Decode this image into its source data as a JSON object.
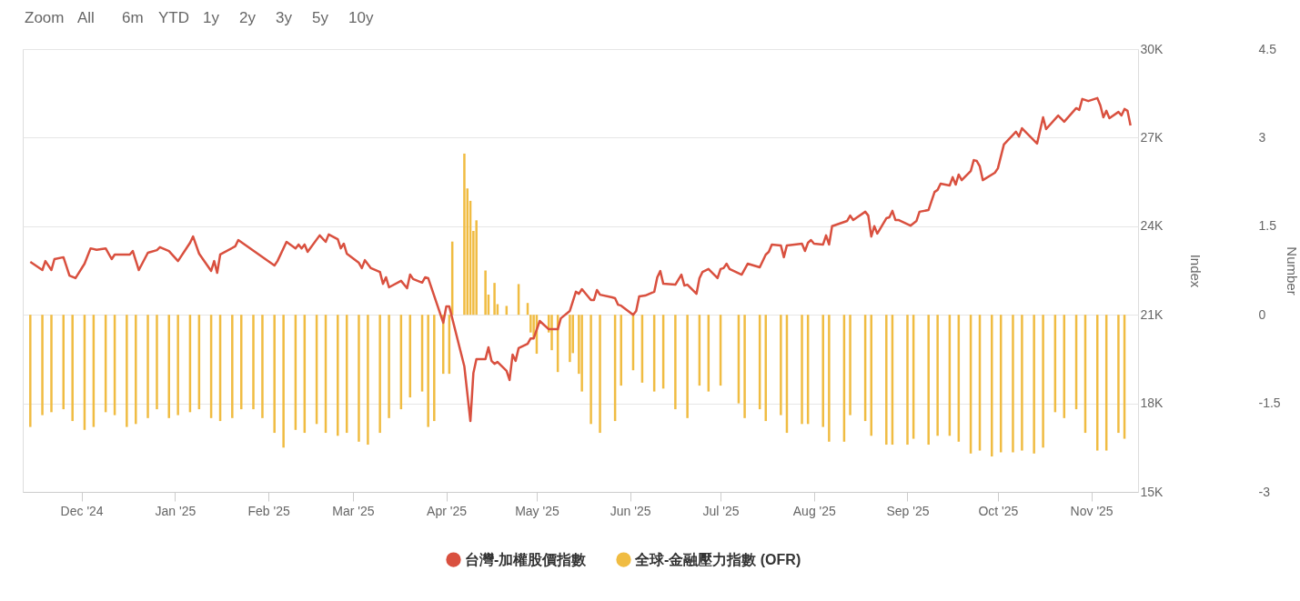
{
  "chart_data": {
    "type": "line",
    "annotations": [
      "Zoom",
      "All",
      "6m",
      "YTD",
      "1y",
      "2y",
      "3y",
      "5y",
      "10y"
    ],
    "ylabel": "Index",
    "y2label": "Number",
    "xlim": [
      "2024-11-13",
      "2025-11-15"
    ],
    "xticks": [
      {
        "value": "2024-12-01",
        "label": "Dec '24"
      },
      {
        "value": "2025-01-01",
        "label": "Jan '25"
      },
      {
        "value": "2025-02-01",
        "label": "Feb '25"
      },
      {
        "value": "2025-03-01",
        "label": "Mar '25"
      },
      {
        "value": "2025-04-01",
        "label": "Apr '25"
      },
      {
        "value": "2025-05-01",
        "label": "May '25"
      },
      {
        "value": "2025-06-01",
        "label": "Jun '25"
      },
      {
        "value": "2025-07-01",
        "label": "Jul '25"
      },
      {
        "value": "2025-08-01",
        "label": "Aug '25"
      },
      {
        "value": "2025-09-01",
        "label": "Sep '25"
      },
      {
        "value": "2025-10-01",
        "label": "Oct '25"
      },
      {
        "value": "2025-11-01",
        "label": "Nov '25"
      }
    ],
    "ylim": [
      15000,
      30000
    ],
    "yticks": [
      {
        "value": 15000,
        "label": "15K"
      },
      {
        "value": 18000,
        "label": "18K"
      },
      {
        "value": 21000,
        "label": "21K"
      },
      {
        "value": 24000,
        "label": "24K"
      },
      {
        "value": 27000,
        "label": "27K"
      },
      {
        "value": 30000,
        "label": "30K"
      }
    ],
    "y2lim": [
      -3,
      4.5
    ],
    "y2ticks": [
      -3,
      -1.5,
      0,
      1.5,
      3,
      4.5
    ],
    "grid": "y",
    "legend": "bottom",
    "series": [
      {
        "name": "台灣-加權股價指數",
        "color": "#d9503f",
        "x": [
          "2024-11-14",
          "2024-11-18",
          "2024-11-19",
          "2024-11-21",
          "2024-11-22",
          "2024-11-25",
          "2024-11-27",
          "2024-11-29",
          "2024-12-02",
          "2024-12-04",
          "2024-12-06",
          "2024-12-09",
          "2024-12-11",
          "2024-12-12",
          "2024-12-17",
          "2024-12-18",
          "2024-12-20",
          "2024-12-23",
          "2024-12-26",
          "2024-12-27",
          "2024-12-30",
          "2025-01-02",
          "2025-01-06",
          "2025-01-07",
          "2025-01-09",
          "2025-01-13",
          "2025-01-14",
          "2025-01-15",
          "2025-01-16",
          "2025-01-21",
          "2025-01-22",
          "2025-02-03",
          "2025-02-04",
          "2025-02-07",
          "2025-02-10",
          "2025-02-11",
          "2025-02-12",
          "2025-02-13",
          "2025-02-14",
          "2025-02-18",
          "2025-02-20",
          "2025-02-21",
          "2025-02-24",
          "2025-02-25",
          "2025-02-26",
          "2025-02-27",
          "2025-03-03",
          "2025-03-04",
          "2025-03-05",
          "2025-03-07",
          "2025-03-10",
          "2025-03-11",
          "2025-03-12",
          "2025-03-13",
          "2025-03-17",
          "2025-03-19",
          "2025-03-20",
          "2025-03-21",
          "2025-03-24",
          "2025-03-25",
          "2025-03-26",
          "2025-03-31",
          "2025-04-01",
          "2025-04-02",
          "2025-04-07",
          "2025-04-09",
          "2025-04-10",
          "2025-04-11",
          "2025-04-14",
          "2025-04-15",
          "2025-04-16",
          "2025-04-17",
          "2025-04-18",
          "2025-04-21",
          "2025-04-22",
          "2025-04-23",
          "2025-04-24",
          "2025-04-25",
          "2025-04-28",
          "2025-04-29",
          "2025-04-30",
          "2025-05-02",
          "2025-05-05",
          "2025-05-08",
          "2025-05-09",
          "2025-05-12",
          "2025-05-14",
          "2025-05-15",
          "2025-05-16",
          "2025-05-19",
          "2025-05-20",
          "2025-05-21",
          "2025-05-22",
          "2025-05-26",
          "2025-05-27",
          "2025-05-28",
          "2025-05-29",
          "2025-06-02",
          "2025-06-03",
          "2025-06-04",
          "2025-06-06",
          "2025-06-09",
          "2025-06-10",
          "2025-06-11",
          "2025-06-12",
          "2025-06-16",
          "2025-06-18",
          "2025-06-19",
          "2025-06-20",
          "2025-06-23",
          "2025-06-24",
          "2025-06-25",
          "2025-06-27",
          "2025-06-30",
          "2025-07-01",
          "2025-07-02",
          "2025-07-03",
          "2025-07-04",
          "2025-07-08",
          "2025-07-10",
          "2025-07-14",
          "2025-07-16",
          "2025-07-17",
          "2025-07-18",
          "2025-07-21",
          "2025-07-22",
          "2025-07-23",
          "2025-07-28",
          "2025-07-29",
          "2025-07-30",
          "2025-07-31",
          "2025-08-01",
          "2025-08-04",
          "2025-08-05",
          "2025-08-06",
          "2025-08-07",
          "2025-08-12",
          "2025-08-13",
          "2025-08-14",
          "2025-08-18",
          "2025-08-19",
          "2025-08-20",
          "2025-08-21",
          "2025-08-22",
          "2025-08-25",
          "2025-08-26",
          "2025-08-27",
          "2025-08-28",
          "2025-08-29",
          "2025-09-02",
          "2025-09-04",
          "2025-09-05",
          "2025-09-08",
          "2025-09-10",
          "2025-09-11",
          "2025-09-12",
          "2025-09-15",
          "2025-09-16",
          "2025-09-17",
          "2025-09-18",
          "2025-09-19",
          "2025-09-22",
          "2025-09-23",
          "2025-09-24",
          "2025-09-25",
          "2025-09-26",
          "2025-09-30",
          "2025-10-01",
          "2025-10-03",
          "2025-10-07",
          "2025-10-08",
          "2025-10-09",
          "2025-10-14",
          "2025-10-16",
          "2025-10-17",
          "2025-10-21",
          "2025-10-23",
          "2025-10-27",
          "2025-10-28",
          "2025-10-29",
          "2025-10-31",
          "2025-11-03",
          "2025-11-04",
          "2025-11-05",
          "2025-11-06",
          "2025-11-07",
          "2025-11-10",
          "2025-11-11",
          "2025-11-12",
          "2025-11-13",
          "2025-11-14"
        ],
        "values": [
          22790,
          22515,
          22820,
          22515,
          22885,
          22950,
          22330,
          22240,
          22730,
          23250,
          23200,
          23250,
          22885,
          23040,
          23040,
          23160,
          22515,
          23100,
          23190,
          23290,
          23160,
          22820,
          23440,
          23650,
          23070,
          22485,
          22820,
          22420,
          23040,
          23320,
          23530,
          22670,
          22820,
          23470,
          23250,
          23380,
          23250,
          23380,
          23130,
          23690,
          23470,
          23720,
          23560,
          23250,
          23410,
          23070,
          22760,
          22580,
          22850,
          22580,
          22450,
          22050,
          22270,
          21930,
          22150,
          21900,
          22360,
          22210,
          22090,
          22270,
          22240,
          20730,
          21280,
          21280,
          19250,
          17400,
          19030,
          19500,
          19500,
          19900,
          19440,
          19340,
          19400,
          19100,
          18790,
          19650,
          19440,
          19870,
          20020,
          20200,
          20200,
          20790,
          20510,
          20510,
          20880,
          21130,
          21780,
          21710,
          21870,
          21500,
          21500,
          21840,
          21680,
          21590,
          21560,
          21340,
          21310,
          21000,
          21130,
          21620,
          21650,
          21780,
          22270,
          22480,
          22050,
          22020,
          22360,
          21990,
          22020,
          21710,
          22240,
          22450,
          22550,
          22240,
          22550,
          22580,
          22730,
          22550,
          22360,
          22730,
          22610,
          23040,
          23130,
          23380,
          23350,
          22950,
          23350,
          23410,
          23160,
          23440,
          23530,
          23410,
          23380,
          23690,
          23380,
          24000,
          24180,
          24360,
          24210,
          24490,
          24360,
          23650,
          24000,
          23750,
          24270,
          24300,
          24520,
          24210,
          24210,
          24020,
          24180,
          24490,
          24550,
          25160,
          25230,
          25440,
          25380,
          25660,
          25410,
          25750,
          25560,
          25870,
          26240,
          26210,
          26030,
          25560,
          25810,
          25960,
          26770,
          27200,
          27040,
          27320,
          26800,
          27690,
          27290,
          27750,
          27540,
          28000,
          27940,
          28310,
          28240,
          28340,
          28090,
          27690,
          27910,
          27660,
          27870,
          27750,
          27970,
          27910,
          27410
        ]
      },
      {
        "name": "全球-金融壓力指數 (OFR)",
        "type": "bar",
        "axis": "y2",
        "color": "#f0bc42",
        "x": [
          "2024-11-14",
          "2024-11-18",
          "2024-11-21",
          "2024-11-25",
          "2024-11-28",
          "2024-12-02",
          "2024-12-05",
          "2024-12-09",
          "2024-12-12",
          "2024-12-16",
          "2024-12-19",
          "2024-12-23",
          "2024-12-26",
          "2024-12-30",
          "2025-01-02",
          "2025-01-06",
          "2025-01-09",
          "2025-01-13",
          "2025-01-16",
          "2025-01-20",
          "2025-01-23",
          "2025-01-27",
          "2025-01-30",
          "2025-02-03",
          "2025-02-06",
          "2025-02-10",
          "2025-02-13",
          "2025-02-17",
          "2025-02-20",
          "2025-02-24",
          "2025-02-27",
          "2025-03-03",
          "2025-03-06",
          "2025-03-10",
          "2025-03-13",
          "2025-03-17",
          "2025-03-20",
          "2025-03-24",
          "2025-03-26",
          "2025-03-28",
          "2025-03-31",
          "2025-04-02",
          "2025-04-03",
          "2025-04-07",
          "2025-04-08",
          "2025-04-09",
          "2025-04-10",
          "2025-04-11",
          "2025-04-14",
          "2025-04-15",
          "2025-04-17",
          "2025-04-18",
          "2025-04-21",
          "2025-04-25",
          "2025-04-28",
          "2025-04-29",
          "2025-04-30",
          "2025-05-01",
          "2025-05-05",
          "2025-05-06",
          "2025-05-08",
          "2025-05-12",
          "2025-05-13",
          "2025-05-15",
          "2025-05-16",
          "2025-05-19",
          "2025-05-22",
          "2025-05-27",
          "2025-05-29",
          "2025-06-02",
          "2025-06-05",
          "2025-06-09",
          "2025-06-12",
          "2025-06-16",
          "2025-06-20",
          "2025-06-24",
          "2025-06-27",
          "2025-07-01",
          "2025-07-07",
          "2025-07-09",
          "2025-07-14",
          "2025-07-16",
          "2025-07-21",
          "2025-07-23",
          "2025-07-28",
          "2025-07-30",
          "2025-08-04",
          "2025-08-06",
          "2025-08-11",
          "2025-08-13",
          "2025-08-18",
          "2025-08-20",
          "2025-08-25",
          "2025-08-27",
          "2025-09-01",
          "2025-09-03",
          "2025-09-08",
          "2025-09-11",
          "2025-09-15",
          "2025-09-18",
          "2025-09-22",
          "2025-09-25",
          "2025-09-29",
          "2025-10-02",
          "2025-10-06",
          "2025-10-09",
          "2025-10-13",
          "2025-10-16",
          "2025-10-20",
          "2025-10-23",
          "2025-10-27",
          "2025-10-30",
          "2025-11-03",
          "2025-11-06",
          "2025-11-10",
          "2025-11-12"
        ],
        "values": [
          -1.9,
          -1.7,
          -1.65,
          -1.6,
          -1.8,
          -1.95,
          -1.9,
          -1.65,
          -1.7,
          -1.9,
          -1.85,
          -1.75,
          -1.6,
          -1.75,
          -1.7,
          -1.65,
          -1.6,
          -1.75,
          -1.8,
          -1.75,
          -1.6,
          -1.6,
          -1.75,
          -2.0,
          -2.25,
          -1.95,
          -2.0,
          -1.85,
          -2.0,
          -2.05,
          -2.0,
          -2.15,
          -2.2,
          -2.0,
          -1.75,
          -1.6,
          -1.4,
          -1.3,
          -1.9,
          -1.8,
          -1.0,
          -1.0,
          1.24,
          2.73,
          2.14,
          1.93,
          1.42,
          1.6,
          0.75,
          0.34,
          0.54,
          0.18,
          0.15,
          0.52,
          0.2,
          -0.3,
          -0.4,
          -0.66,
          -0.3,
          -0.6,
          -0.97,
          -0.8,
          -0.65,
          -1.0,
          -1.3,
          -1.85,
          -2.0,
          -1.8,
          -1.2,
          -0.94,
          -1.15,
          -1.3,
          -1.25,
          -1.6,
          -1.75,
          -1.2,
          -1.3,
          -1.2,
          -1.5,
          -1.75,
          -1.6,
          -1.8,
          -1.7,
          -2.0,
          -1.85,
          -1.85,
          -1.9,
          -2.15,
          -2.15,
          -1.7,
          -1.8,
          -2.05,
          -2.2,
          -2.2,
          -2.2,
          -2.1,
          -2.2,
          -2.05,
          -2.05,
          -2.15,
          -2.35,
          -2.3,
          -2.4,
          -2.33,
          -2.33,
          -2.3,
          -2.35,
          -2.25,
          -1.65,
          -1.75,
          -1.6,
          -2.0,
          -2.3,
          -2.3,
          -2.0,
          -2.1
        ]
      }
    ]
  }
}
